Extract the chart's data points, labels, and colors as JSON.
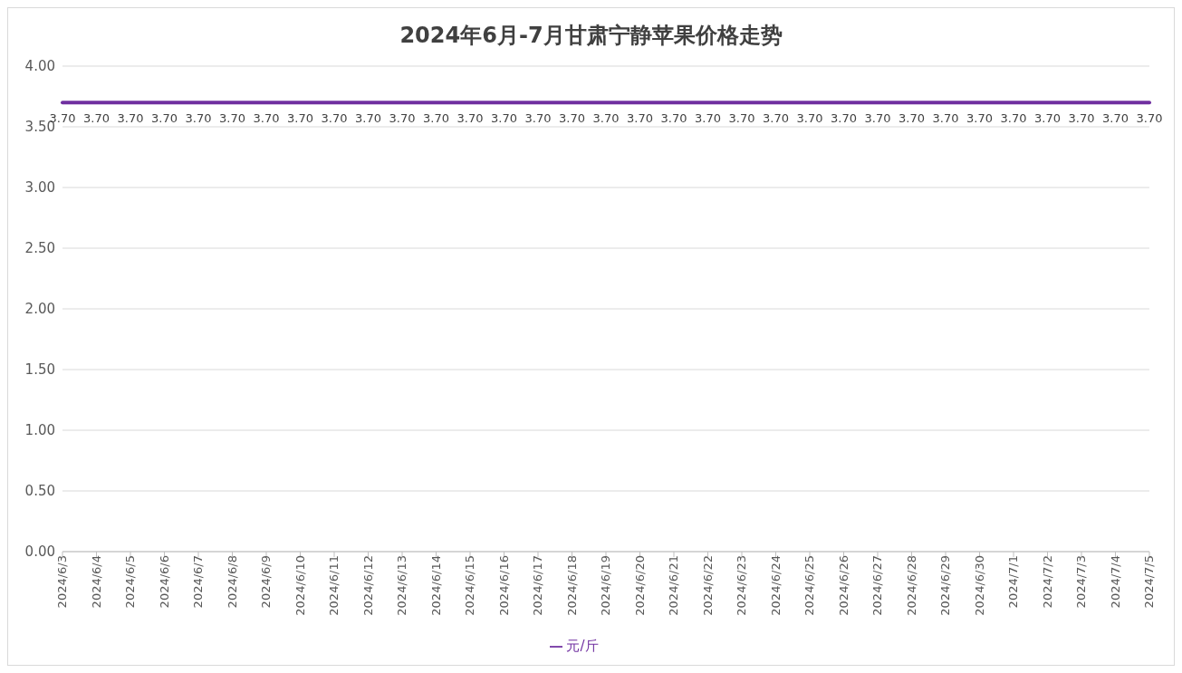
{
  "chart_data": {
    "type": "line",
    "title": "2024年6月-7月甘肃宁静苹果价格走势",
    "categories": [
      "2024/6/3",
      "2024/6/4",
      "2024/6/5",
      "2024/6/6",
      "2024/6/7",
      "2024/6/8",
      "2024/6/9",
      "2024/6/10",
      "2024/6/11",
      "2024/6/12",
      "2024/6/13",
      "2024/6/14",
      "2024/6/15",
      "2024/6/16",
      "2024/6/17",
      "2024/6/18",
      "2024/6/19",
      "2024/6/20",
      "2024/6/21",
      "2024/6/22",
      "2024/6/23",
      "2024/6/24",
      "2024/6/25",
      "2024/6/26",
      "2024/6/27",
      "2024/6/28",
      "2024/6/29",
      "2024/6/30",
      "2024/7/1",
      "2024/7/2",
      "2024/7/3",
      "2024/7/4",
      "2024/7/5"
    ],
    "series": [
      {
        "name": "元/斤",
        "color": "#7030a0",
        "values": [
          3.7,
          3.7,
          3.7,
          3.7,
          3.7,
          3.7,
          3.7,
          3.7,
          3.7,
          3.7,
          3.7,
          3.7,
          3.7,
          3.7,
          3.7,
          3.7,
          3.7,
          3.7,
          3.7,
          3.7,
          3.7,
          3.7,
          3.7,
          3.7,
          3.7,
          3.7,
          3.7,
          3.7,
          3.7,
          3.7,
          3.7,
          3.7,
          3.7
        ],
        "value_labels": [
          "3.70",
          "3.70",
          "3.70",
          "3.70",
          "3.70",
          "3.70",
          "3.70",
          "3.70",
          "3.70",
          "3.70",
          "3.70",
          "3.70",
          "3.70",
          "3.70",
          "3.70",
          "3.70",
          "3.70",
          "3.70",
          "3.70",
          "3.70",
          "3.70",
          "3.70",
          "3.70",
          "3.70",
          "3.70",
          "3.70",
          "3.70",
          "3.70",
          "3.70",
          "3.70",
          "3.70",
          "3.70",
          "3.70"
        ]
      }
    ],
    "ylim": [
      0,
      4
    ],
    "yticks": [
      {
        "value": 0,
        "label": "0.00"
      },
      {
        "value": 0.5,
        "label": "0.50"
      },
      {
        "value": 1,
        "label": "1.00"
      },
      {
        "value": 1.5,
        "label": "1.50"
      },
      {
        "value": 2,
        "label": "2.00"
      },
      {
        "value": 2.5,
        "label": "2.50"
      },
      {
        "value": 3,
        "label": "3.00"
      },
      {
        "value": 3.5,
        "label": "3.50"
      },
      {
        "value": 4,
        "label": "4.00"
      }
    ],
    "grid": "y",
    "legend": "bottom",
    "marker": "none",
    "line_style": "solid"
  }
}
